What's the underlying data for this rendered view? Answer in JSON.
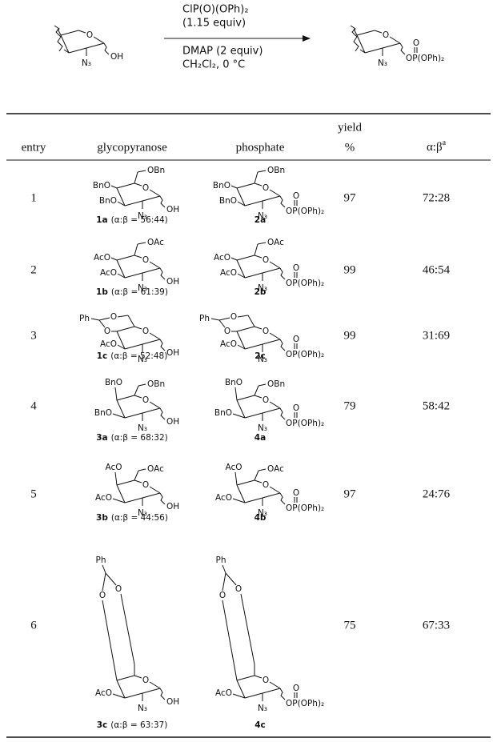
{
  "scheme": {
    "reactant": [
      "O",
      "N₃",
      "OH"
    ],
    "reagents_above": [
      "ClP(O)(OPh)₂",
      "(1.15 equiv)"
    ],
    "reagents_below": [
      "DMAP (2 equiv)",
      "CH₂Cl₂, 0 °C"
    ],
    "product": [
      "O",
      "N₃",
      "O",
      "OP(OPh)₂"
    ]
  },
  "table": {
    "headers": {
      "entry": "entry",
      "glycopyranose": "glycopyranose",
      "phosphate": "phosphate",
      "yield": "yield",
      "yield_unit": "%",
      "ratio": "α:β",
      "ratio_note": "a"
    },
    "rows": [
      {
        "entry": 1,
        "glycopyranose": {
          "labels": [
            "OBn",
            "BnO",
            "BnO",
            "O",
            "N₃",
            "OH"
          ],
          "compound": "1a",
          "note": "(α:β = 56:44)"
        },
        "phosphate": {
          "labels": [
            "OBn",
            "BnO",
            "BnO",
            "O",
            "N₃",
            "O",
            "OP(OPh)₂"
          ],
          "compound": "2a"
        },
        "yield": 97,
        "ratio": "72:28"
      },
      {
        "entry": 2,
        "glycopyranose": {
          "labels": [
            "OAc",
            "AcO",
            "AcO",
            "O",
            "N₃",
            "OH"
          ],
          "compound": "1b",
          "note": "(α:β = 61:39)"
        },
        "phosphate": {
          "labels": [
            "OAc",
            "AcO",
            "AcO",
            "O",
            "N₃",
            "O",
            "OP(OPh)₂"
          ],
          "compound": "2b"
        },
        "yield": 99,
        "ratio": "46:54"
      },
      {
        "entry": 3,
        "glycopyranose": {
          "labels": [
            "Ph",
            "O",
            "O",
            "AcO",
            "O",
            "N₃",
            "OH"
          ],
          "compound": "1c",
          "note": "(α:β = 52:48)"
        },
        "phosphate": {
          "labels": [
            "Ph",
            "O",
            "O",
            "AcO",
            "O",
            "N₃",
            "O",
            "OP(OPh)₂"
          ],
          "compound": "2c"
        },
        "yield": 99,
        "ratio": "31:69"
      },
      {
        "entry": 4,
        "glycopyranose": {
          "labels": [
            "BnO",
            "OBn",
            "BnO",
            "O",
            "N₃",
            "OH"
          ],
          "compound": "3a",
          "note": "(α:β = 68:32)"
        },
        "phosphate": {
          "labels": [
            "BnO",
            "OBn",
            "BnO",
            "O",
            "N₃",
            "O",
            "OP(OPh)₂"
          ],
          "compound": "4a"
        },
        "yield": 79,
        "ratio": "58:42"
      },
      {
        "entry": 5,
        "glycopyranose": {
          "labels": [
            "AcO",
            "OAc",
            "AcO",
            "O",
            "N₃",
            "OH"
          ],
          "compound": "3b",
          "note": "(α:β = 44:56)"
        },
        "phosphate": {
          "labels": [
            "AcO",
            "OAc",
            "AcO",
            "O",
            "N₃",
            "O",
            "OP(OPh)₂"
          ],
          "compound": "4b"
        },
        "yield": 97,
        "ratio": "24:76"
      },
      {
        "entry": 6,
        "glycopyranose": {
          "labels": [
            "Ph",
            "O",
            "O",
            "AcO",
            "O",
            "N₃",
            "OH"
          ],
          "compound": "3c",
          "note": "(α:β = 63:37)"
        },
        "phosphate": {
          "labels": [
            "Ph",
            "O",
            "O",
            "AcO",
            "O",
            "N₃",
            "O",
            "OP(OPh)₂"
          ],
          "compound": "4c"
        },
        "yield": 75,
        "ratio": "67:33"
      }
    ]
  }
}
